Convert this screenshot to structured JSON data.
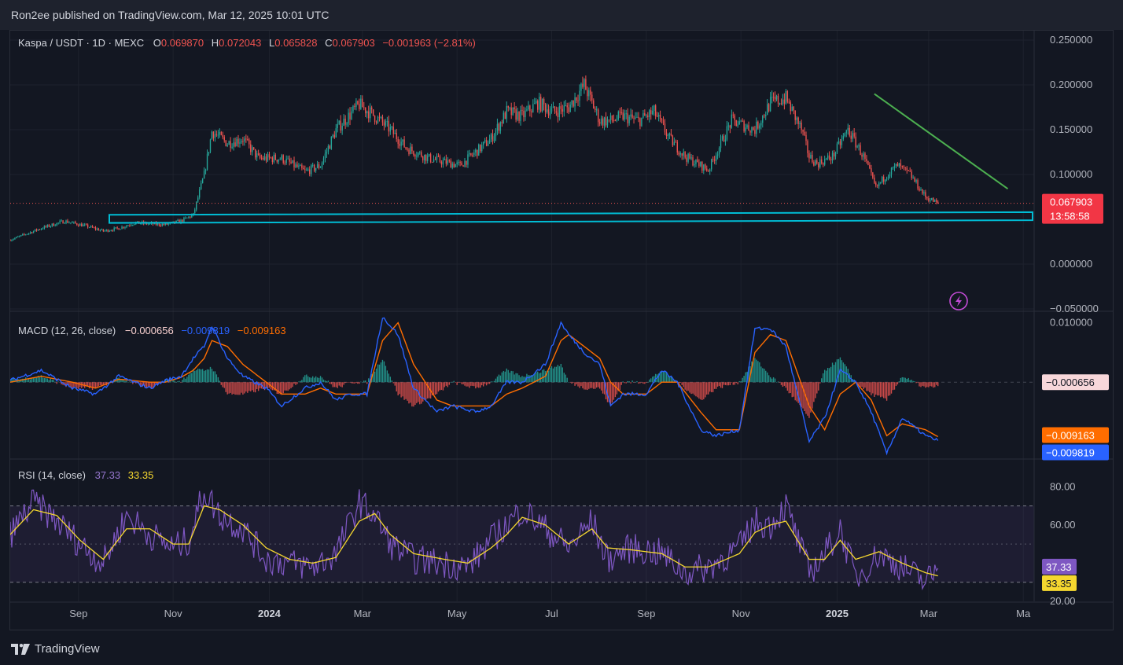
{
  "header": {
    "published": "Ron2ee published on TradingView.com, Mar 12, 2025 10:01 UTC"
  },
  "footer": {
    "brand": "TradingView"
  },
  "colors": {
    "up": "#26a69a",
    "down": "#ef5350",
    "bg": "#131722",
    "trendline": "#4caf50",
    "support": "#00bcd4",
    "macd": "#2962ff",
    "signal": "#ff6d00",
    "rsi": "#7e57c2",
    "rsi_ma": "#f5d72f"
  },
  "chart_data": [
    {
      "type": "candlestick",
      "legend": {
        "symbol": "Kaspa / USDT · 1D · MEXC",
        "o_label": "O",
        "o": "0.069870",
        "h_label": "H",
        "h": "0.072043",
        "l_label": "L",
        "l": "0.065828",
        "c_label": "C",
        "c": "0.067903",
        "change": "−0.001963 (−2.81%)"
      },
      "y_ticks": [
        "0.250000",
        "0.200000",
        "0.150000",
        "0.100000",
        "0.000000",
        "−0.050000"
      ],
      "y_tick_values": [
        0.25,
        0.2,
        0.15,
        0.1,
        0.0,
        -0.05
      ],
      "ylim": [
        -0.05,
        0.25
      ],
      "last_price": "0.067903",
      "countdown": "13:58:58",
      "x_ticks": [
        "Sep",
        "Nov",
        "2024",
        "Mar",
        "May",
        "Jul",
        "Sep",
        "Nov",
        "2025",
        "Mar",
        "Ma"
      ],
      "x_tick_days": [
        44,
        105,
        167,
        227,
        288,
        349,
        410,
        471,
        533,
        592,
        653
      ],
      "x_range_days": [
        0,
        660
      ],
      "series_anchors": {
        "days": [
          0,
          20,
          35,
          50,
          60,
          70,
          80,
          90,
          100,
          110,
          118,
          125,
          130,
          140,
          150,
          160,
          175,
          190,
          200,
          210,
          225,
          235,
          245,
          255,
          270,
          290,
          310,
          320,
          330,
          340,
          350,
          360,
          370,
          380,
          387,
          395,
          405,
          415,
          425,
          435,
          450,
          465,
          480,
          490,
          500,
          510,
          515,
          520,
          530,
          540,
          550,
          558,
          565,
          572,
          580,
          590,
          598
        ],
        "close": [
          0.027,
          0.04,
          0.048,
          0.042,
          0.037,
          0.04,
          0.046,
          0.045,
          0.044,
          0.048,
          0.055,
          0.1,
          0.148,
          0.135,
          0.14,
          0.118,
          0.118,
          0.103,
          0.11,
          0.15,
          0.178,
          0.165,
          0.15,
          0.13,
          0.118,
          0.11,
          0.14,
          0.17,
          0.165,
          0.18,
          0.17,
          0.175,
          0.2,
          0.16,
          0.16,
          0.165,
          0.16,
          0.17,
          0.14,
          0.12,
          0.105,
          0.16,
          0.15,
          0.18,
          0.185,
          0.15,
          0.12,
          0.112,
          0.12,
          0.15,
          0.12,
          0.085,
          0.1,
          0.11,
          0.1,
          0.075,
          0.0679
        ]
      },
      "annotations": {
        "trendline": {
          "from": [
            557,
            0.19
          ],
          "to": [
            643,
            0.084
          ]
        },
        "support_zone": {
          "from_day": 0,
          "to_day": 660,
          "top_left": 0.055,
          "top_right": 0.058,
          "bottom_left": 0.046,
          "bottom_right": 0.049
        }
      }
    },
    {
      "type": "line",
      "title": "MACD (12, 26, close)",
      "legend_values": [
        "−0.000656",
        "−0.009819",
        "−0.009163"
      ],
      "y_ticks": [
        "0.010000"
      ],
      "ylim": [
        -0.012,
        0.011
      ],
      "last_values": {
        "histogram": "−0.000656",
        "signal": "−0.009163",
        "macd": "−0.009819"
      },
      "series_anchors": {
        "days": [
          0,
          20,
          40,
          55,
          70,
          90,
          100,
          110,
          118,
          125,
          130,
          140,
          150,
          165,
          175,
          190,
          200,
          210,
          220,
          230,
          240,
          250,
          260,
          275,
          285,
          300,
          310,
          320,
          330,
          345,
          355,
          360,
          370,
          380,
          387,
          395,
          410,
          420,
          430,
          445,
          455,
          470,
          480,
          490,
          500,
          515,
          525,
          535,
          545,
          555,
          565,
          575,
          590,
          598
        ],
        "macd": [
          0.0003,
          0.002,
          -0.001,
          -0.002,
          0.001,
          -0.001,
          0.0003,
          0.001,
          0.004,
          0.006,
          0.0095,
          0.004,
          0.001,
          -0.001,
          -0.004,
          -0.001,
          0.0,
          -0.003,
          -0.002,
          -0.002,
          0.011,
          0.008,
          -0.001,
          -0.005,
          -0.004,
          -0.005,
          -0.004,
          0.0,
          0.0,
          0.003,
          0.01,
          0.008,
          0.005,
          0.003,
          -0.004,
          -0.002,
          -0.002,
          0.002,
          0.0,
          -0.008,
          -0.009,
          -0.008,
          0.009,
          0.009,
          0.006,
          -0.01,
          -0.006,
          0.002,
          0.0,
          -0.005,
          -0.012,
          -0.006,
          -0.009,
          -0.009819
        ],
        "signal": [
          0.0,
          0.001,
          0.0,
          -0.001,
          0.0005,
          0.0,
          0.0,
          0.0008,
          0.002,
          0.004,
          0.007,
          0.006,
          0.003,
          0.0,
          -0.002,
          -0.002,
          -0.001,
          -0.002,
          -0.002,
          -0.002,
          0.007,
          0.01,
          0.003,
          -0.003,
          -0.004,
          -0.004,
          -0.004,
          -0.002,
          -0.001,
          0.001,
          0.007,
          0.008,
          0.006,
          0.004,
          0.0,
          -0.002,
          -0.002,
          0.0,
          0.0,
          -0.005,
          -0.008,
          -0.008,
          0.005,
          0.008,
          0.007,
          -0.004,
          -0.008,
          -0.002,
          0.0,
          -0.003,
          -0.009,
          -0.007,
          -0.008,
          -0.009163
        ]
      }
    },
    {
      "type": "line",
      "title": "RSI (14, close)",
      "legend_values": [
        "37.33",
        "33.35"
      ],
      "y_ticks": [
        "80.00",
        "60.00",
        "20.00"
      ],
      "y_tick_values": [
        80,
        60,
        20
      ],
      "band": [
        30,
        70
      ],
      "midline": 50,
      "ylim": [
        20,
        90
      ],
      "last_values": {
        "rsi": "37.33",
        "rsi_ma": "33.35"
      },
      "series_anchors": {
        "days": [
          0,
          15,
          30,
          45,
          60,
          75,
          90,
          105,
          115,
          125,
          135,
          150,
          165,
          180,
          195,
          210,
          225,
          235,
          245,
          260,
          280,
          295,
          310,
          320,
          330,
          345,
          360,
          375,
          385,
          400,
          420,
          435,
          450,
          470,
          480,
          490,
          500,
          515,
          525,
          535,
          545,
          560,
          575,
          590,
          598
        ],
        "rsi": [
          55,
          72,
          62,
          50,
          40,
          65,
          55,
          48,
          52,
          78,
          65,
          58,
          42,
          40,
          38,
          45,
          72,
          65,
          50,
          42,
          40,
          38,
          52,
          60,
          68,
          58,
          48,
          62,
          42,
          48,
          45,
          35,
          38,
          48,
          62,
          60,
          70,
          35,
          45,
          58,
          32,
          45,
          38,
          30,
          37.33
        ],
        "rsi_ma": [
          55,
          68,
          65,
          52,
          42,
          58,
          58,
          50,
          50,
          70,
          68,
          60,
          48,
          42,
          40,
          43,
          62,
          66,
          55,
          45,
          42,
          40,
          48,
          55,
          64,
          60,
          50,
          58,
          48,
          47,
          45,
          38,
          38,
          45,
          56,
          60,
          62,
          42,
          42,
          52,
          42,
          46,
          40,
          35,
          33.35
        ]
      }
    }
  ]
}
